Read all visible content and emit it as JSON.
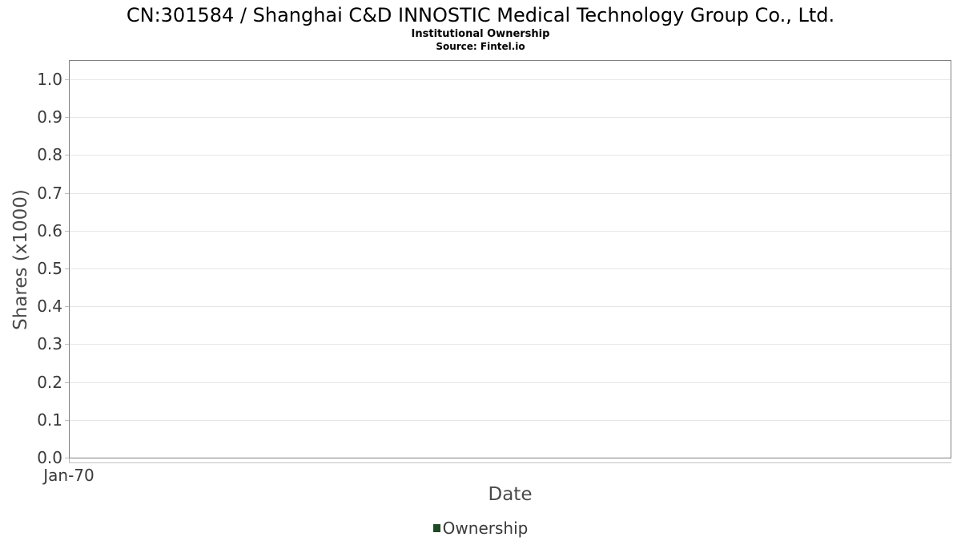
{
  "header": {
    "title": "CN:301584 / Shanghai C&D INNOSTIC Medical Technology Group Co., Ltd.",
    "subtitle": "Institutional Ownership",
    "source": "Source: Fintel.io"
  },
  "chart_data": {
    "type": "line",
    "title": "CN:301584 / Shanghai C&D INNOSTIC Medical Technology Group Co., Ltd.",
    "subtitle": "Institutional Ownership",
    "source": "Source: Fintel.io",
    "xlabel": "Date",
    "ylabel": "Shares (x1000)",
    "ylim": [
      0.0,
      1.05
    ],
    "ytick_values": [
      0.0,
      0.1,
      0.2,
      0.3,
      0.4,
      0.5,
      0.6,
      0.7,
      0.8,
      0.9,
      1.0
    ],
    "ytick_labels": [
      "0.0",
      "0.1",
      "0.2",
      "0.3",
      "0.4",
      "0.5",
      "0.6",
      "0.7",
      "0.8",
      "0.9",
      "1.0"
    ],
    "xtick_labels": [
      "Jan-70"
    ],
    "grid": "horizontal gridlines on, vertical off",
    "legend_position": "bottom-center",
    "plot_border": true,
    "series": [
      {
        "name": "Ownership",
        "color": "#1e4a26",
        "points": []
      }
    ]
  },
  "legend": {
    "items": [
      {
        "label": "Ownership",
        "color": "#1e4a26"
      }
    ]
  },
  "colors": {
    "background": "#ffffff",
    "plot_border": "#808080",
    "gridline": "#e6e6e6",
    "axis_line": "#c4c4c4",
    "tick_mark": "#bdbdbd",
    "tick_label": "#3a3a3a",
    "axis_title": "#4a4a4a",
    "title_text": "#000000"
  }
}
